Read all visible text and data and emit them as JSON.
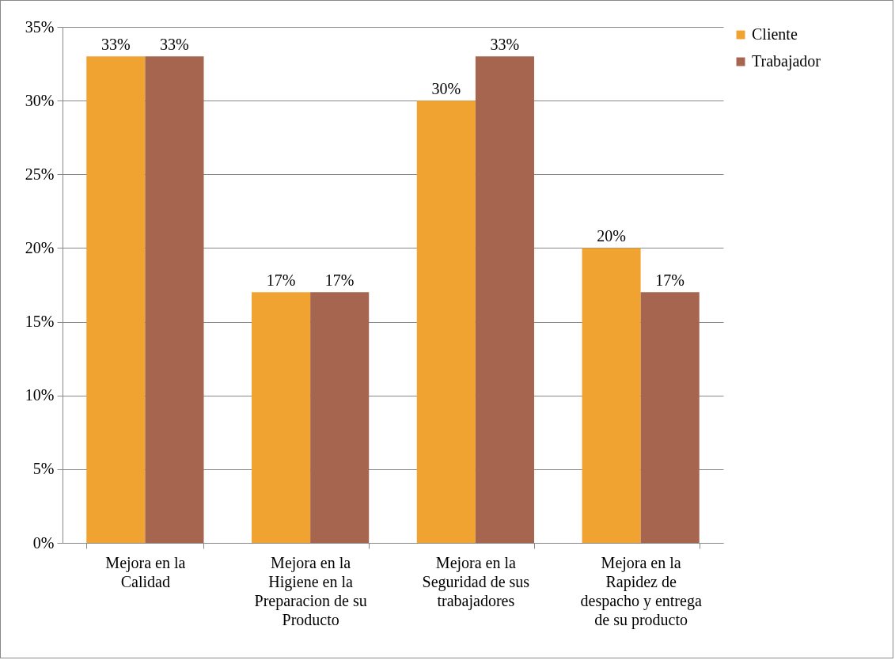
{
  "chart_data": {
    "type": "bar",
    "categories": [
      "Mejora en la Calidad",
      "Mejora en la Higiene en la Preparacion de su Producto",
      "Mejora en la Seguridad de sus trabajadores",
      "Mejora en la Rapidez de despacho y entrega de su producto"
    ],
    "series": [
      {
        "name": "Cliente",
        "color": "#f0a330",
        "values": [
          33,
          17,
          30,
          20
        ],
        "value_labels": [
          "33%",
          "17%",
          "30%",
          "20%"
        ]
      },
      {
        "name": "Trabajador",
        "color": "#a5654e",
        "values": [
          33,
          17,
          33,
          17
        ],
        "value_labels": [
          "33%",
          "17%",
          "33%",
          "17%"
        ]
      }
    ],
    "ylim": [
      0,
      35
    ],
    "yticks": [
      {
        "value": 0,
        "label": "0%"
      },
      {
        "value": 5,
        "label": "5%"
      },
      {
        "value": 10,
        "label": "10%"
      },
      {
        "value": 15,
        "label": "15%"
      },
      {
        "value": 20,
        "label": "20%"
      },
      {
        "value": 25,
        "label": "25%"
      },
      {
        "value": 30,
        "label": "30%"
      },
      {
        "value": 35,
        "label": "35%"
      }
    ],
    "grid": "y",
    "legend": "right"
  }
}
